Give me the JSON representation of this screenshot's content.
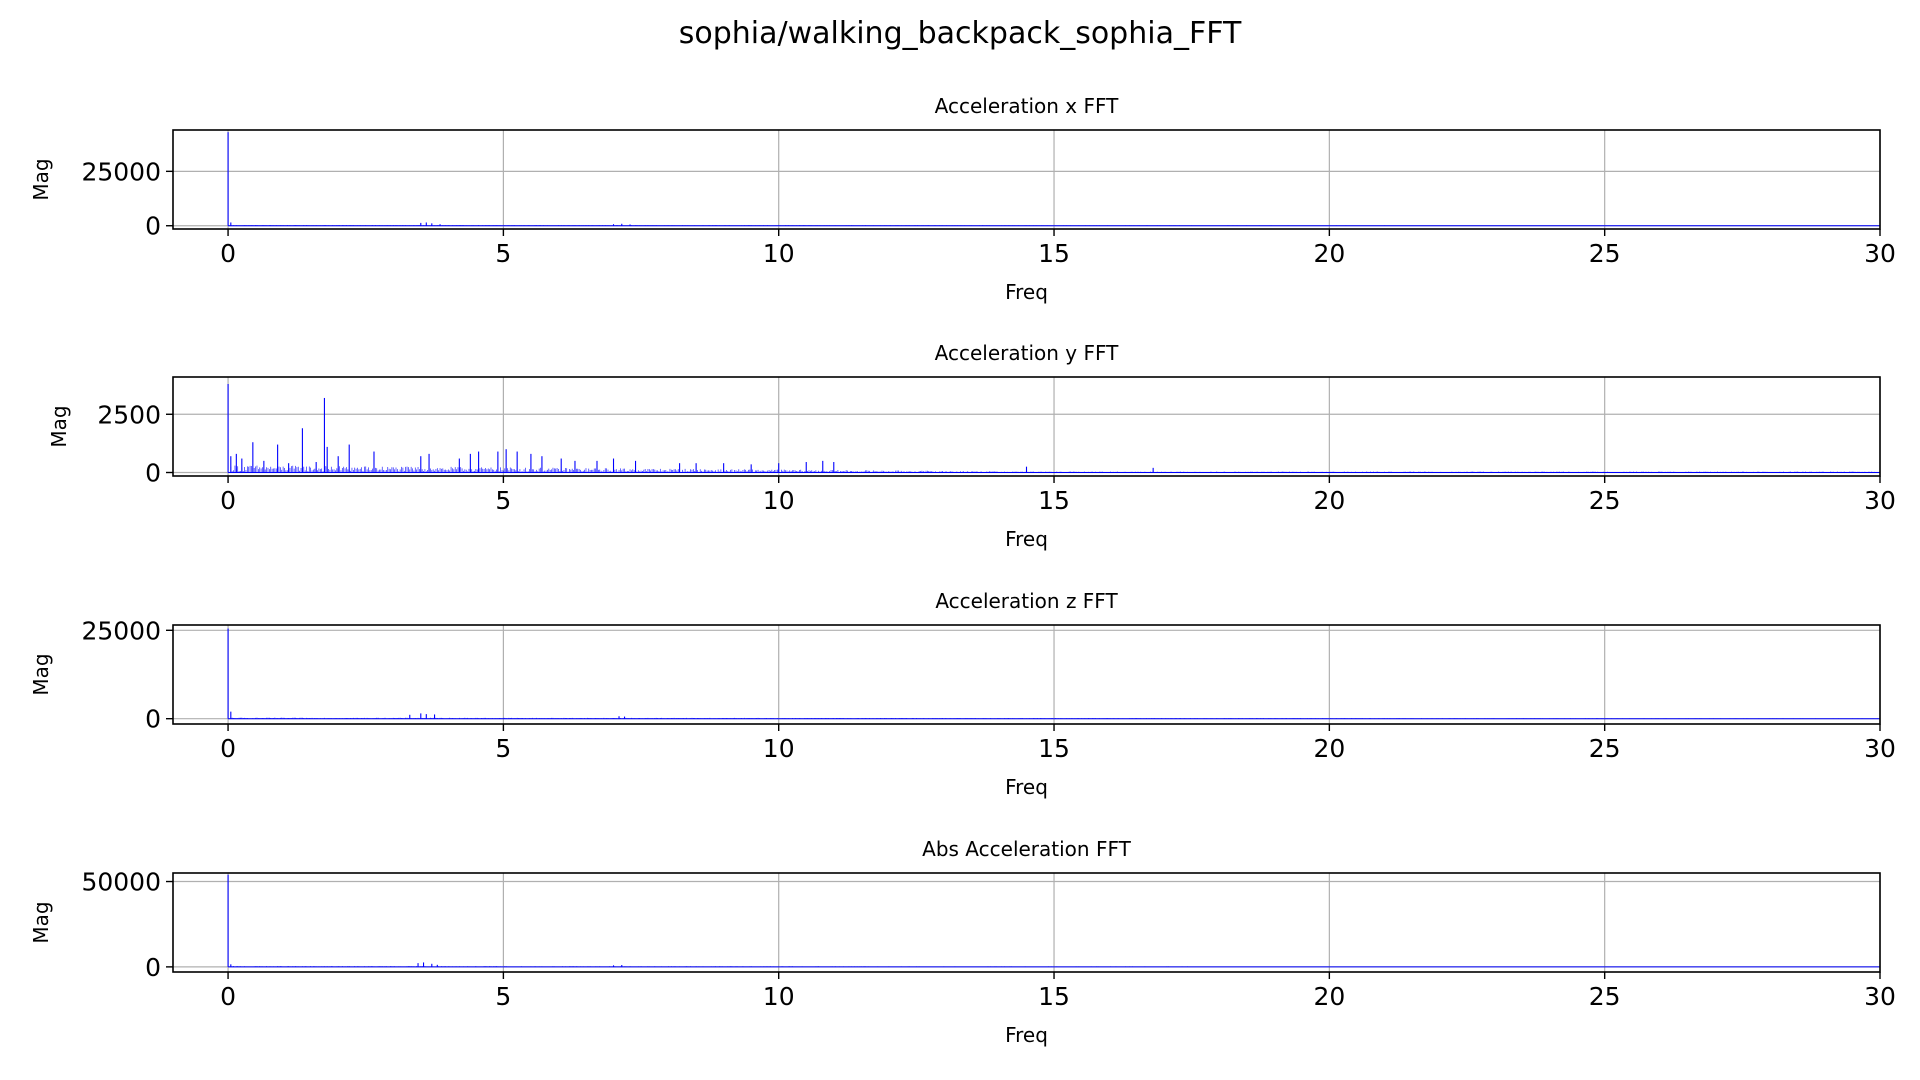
{
  "figure": {
    "title": "sophia/walking_backpack_sophia_FFT"
  },
  "chart_data": [
    {
      "type": "line",
      "title": "Acceleration x FFT",
      "xlabel": "Freq",
      "ylabel": "Mag",
      "xlim": [
        -1,
        30
      ],
      "ylim": [
        -1500,
        44000
      ],
      "xticks": [
        0,
        5,
        10,
        15,
        20,
        25,
        30
      ],
      "yticks": [
        0,
        25000
      ],
      "grid": true,
      "color": "#0000ff",
      "peaks": [
        [
          0,
          43000
        ],
        [
          0.05,
          1500
        ],
        [
          3.5,
          1300
        ],
        [
          3.6,
          1500
        ],
        [
          3.7,
          1100
        ],
        [
          3.85,
          700
        ],
        [
          7.0,
          700
        ],
        [
          7.15,
          900
        ],
        [
          7.3,
          600
        ]
      ],
      "noise_floor": 250
    },
    {
      "type": "line",
      "title": "Acceleration y FFT",
      "xlabel": "Freq",
      "ylabel": "Mag",
      "xlim": [
        -1,
        30
      ],
      "ylim": [
        -150,
        4100
      ],
      "xticks": [
        0,
        5,
        10,
        15,
        20,
        25,
        30
      ],
      "yticks": [
        0,
        2500
      ],
      "grid": true,
      "color": "#0000ff",
      "peaks": [
        [
          0,
          3800
        ],
        [
          0.05,
          700
        ],
        [
          0.15,
          800
        ],
        [
          0.25,
          600
        ],
        [
          0.45,
          1300
        ],
        [
          0.65,
          500
        ],
        [
          0.9,
          1200
        ],
        [
          1.1,
          400
        ],
        [
          1.35,
          1900
        ],
        [
          1.6,
          450
        ],
        [
          1.75,
          3200
        ],
        [
          1.8,
          1100
        ],
        [
          2.0,
          700
        ],
        [
          2.2,
          1200
        ],
        [
          2.65,
          900
        ],
        [
          3.5,
          700
        ],
        [
          3.65,
          800
        ],
        [
          4.2,
          600
        ],
        [
          4.4,
          800
        ],
        [
          4.55,
          900
        ],
        [
          4.9,
          900
        ],
        [
          5.05,
          1000
        ],
        [
          5.25,
          900
        ],
        [
          5.5,
          800
        ],
        [
          5.7,
          700
        ],
        [
          6.05,
          600
        ],
        [
          6.3,
          500
        ],
        [
          6.7,
          500
        ],
        [
          7.0,
          600
        ],
        [
          7.4,
          500
        ],
        [
          8.2,
          400
        ],
        [
          8.5,
          400
        ],
        [
          9.0,
          400
        ],
        [
          9.5,
          350
        ],
        [
          10.0,
          400
        ],
        [
          10.5,
          450
        ],
        [
          10.8,
          500
        ],
        [
          11.0,
          450
        ],
        [
          14.5,
          250
        ],
        [
          16.8,
          200
        ]
      ],
      "noise_floor": 220
    },
    {
      "type": "line",
      "title": "Acceleration z FFT",
      "xlabel": "Freq",
      "ylabel": "Mag",
      "xlim": [
        -1,
        30
      ],
      "ylim": [
        -1500,
        26500
      ],
      "xticks": [
        0,
        5,
        10,
        15,
        20,
        25,
        30
      ],
      "yticks": [
        0,
        25000
      ],
      "grid": true,
      "color": "#0000ff",
      "peaks": [
        [
          0,
          25500
        ],
        [
          0.05,
          2000
        ],
        [
          3.3,
          1100
        ],
        [
          3.5,
          1500
        ],
        [
          3.6,
          1300
        ],
        [
          3.75,
          1200
        ],
        [
          7.1,
          700
        ],
        [
          7.2,
          600
        ]
      ],
      "noise_floor": 250
    },
    {
      "type": "line",
      "title": "Abs Acceleration FFT",
      "xlabel": "Freq",
      "ylabel": "Mag",
      "xlim": [
        -1,
        30
      ],
      "ylim": [
        -3000,
        55000
      ],
      "xticks": [
        0,
        5,
        10,
        15,
        20,
        25,
        30
      ],
      "yticks": [
        0,
        50000
      ],
      "grid": true,
      "color": "#0000ff",
      "peaks": [
        [
          0,
          54000
        ],
        [
          0.05,
          1500
        ],
        [
          3.45,
          2200
        ],
        [
          3.55,
          2600
        ],
        [
          3.7,
          1800
        ],
        [
          3.8,
          1200
        ],
        [
          7.0,
          900
        ],
        [
          7.15,
          1100
        ]
      ],
      "noise_floor": 400
    }
  ]
}
